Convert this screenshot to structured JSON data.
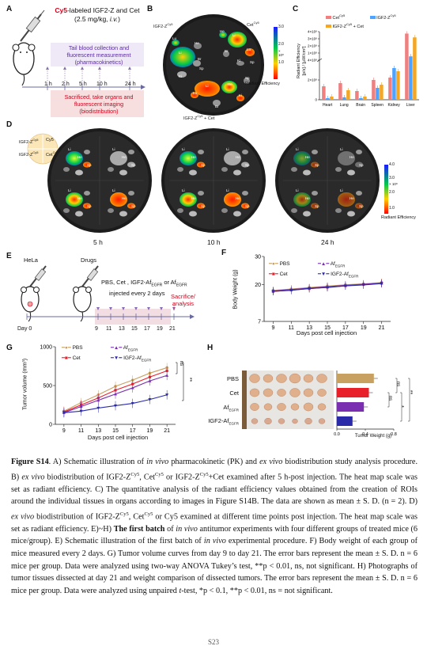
{
  "panelA": {
    "label": "A",
    "title_cy5": "Cy5",
    "title_rest": "-labeled IGF2-Z and Cet",
    "dose": "(2.5 mg/kg, ",
    "dose_route": "i.v.",
    "dose_end": ")",
    "timepoints": [
      "1 h",
      "2 h",
      "5 h",
      "10 h",
      "24 h"
    ],
    "upper_text": [
      "Tail blood collection and",
      "fluorescent measurement",
      "(pharmacokinetics)"
    ],
    "lower_text": [
      "Sacrificed, take organs and",
      "fluorescent imaging",
      "(biodistribution)"
    ]
  },
  "panelB": {
    "label": "B",
    "group_top_left": "IGF2-Z",
    "group_top_left_sup": "Cy5",
    "group_top_right": "Cet",
    "group_top_right_sup": "Cy5",
    "group_bottom": "IGF2-Z",
    "group_bottom_sup": "Cy5",
    "group_bottom_rest": " + Cet",
    "organs": [
      "Li",
      "He",
      "Lu",
      "Br",
      "Ki",
      "Sp"
    ],
    "scale_max": "3.0",
    "scale_mid": "2.0",
    "scale_low": "1.0",
    "scale_unit": "× 10⁸",
    "scale_title": "Radiant Efficiency",
    "colors": {
      "hot": "#ff2a00",
      "warm": "#ffd000",
      "mid": "#00c84a",
      "cool": "#1a3cff"
    }
  },
  "panelC": {
    "label": "C",
    "legend": [
      {
        "name": "Cet",
        "sup": "Cy5",
        "color": "#f08080"
      },
      {
        "name": "IGF2-Z",
        "sup": "Cy5",
        "color": "#4da3ff"
      },
      {
        "name": "IGF2-Z",
        "sup": "Cy5",
        "rest": " + Cet",
        "color": "#f5a623"
      }
    ],
    "ylabel": "Radiant Efficiency",
    "ylabel2": "[p/s] / [µW/cm²]",
    "yticks_lower": [
      "0",
      "2×10⁸",
      "4×10⁸"
    ],
    "yticks_upper": [
      "1×10⁸",
      "2×10⁸",
      "3×10⁸",
      "4×10⁸"
    ]
  },
  "chart_data": [
    {
      "type": "bar",
      "panel": "C",
      "categories": [
        "Heart",
        "Lung",
        "Brain",
        "Spleen",
        "Kidney",
        "Liver"
      ],
      "series": [
        {
          "name": "Cet Cy5",
          "values": [
            8.5,
            10.5,
            5.5,
            12.5,
            14.0,
            95
          ]
        },
        {
          "name": "IGF2-Z Cy5",
          "values": [
            1.0,
            1.5,
            1.0,
            7.5,
            20.0,
            35
          ]
        },
        {
          "name": "IGF2-Z Cy5 + Cet",
          "values": [
            2.0,
            6.0,
            2.0,
            9.5,
            18.0,
            85
          ]
        }
      ]
    },
    {
      "type": "line",
      "panel": "F",
      "x": [
        9,
        11,
        13,
        15,
        17,
        19,
        21
      ],
      "xlabel": "Days post cell injection",
      "ylabel": "Body Weight (g)",
      "ylim": [
        7,
        30
      ],
      "yticks": [
        7,
        20,
        30
      ],
      "series": [
        {
          "name": "PBS",
          "values": [
            18.0,
            18.5,
            19.0,
            19.5,
            20.0,
            20.3,
            20.8
          ]
        },
        {
          "name": "Cet",
          "values": [
            17.6,
            18.1,
            18.6,
            19.1,
            19.6,
            20.1,
            20.6
          ]
        },
        {
          "name": "AfEGFR",
          "values": [
            17.8,
            18.3,
            18.8,
            19.3,
            19.8,
            20.2,
            20.5
          ]
        },
        {
          "name": "IGF2-AfEGFR",
          "values": [
            17.7,
            18.0,
            18.7,
            19.0,
            19.6,
            19.9,
            20.4
          ]
        }
      ]
    },
    {
      "type": "line",
      "panel": "G",
      "x": [
        9,
        11,
        13,
        15,
        17,
        19,
        21
      ],
      "xlabel": "Days post cell injection",
      "ylabel": "Tumor volume (mm³)",
      "ylim": [
        0,
        1000
      ],
      "yticks": [
        0,
        500,
        1000
      ],
      "series": [
        {
          "name": "PBS",
          "values": [
            170,
            280,
            380,
            490,
            570,
            660,
            730
          ]
        },
        {
          "name": "Cet",
          "values": [
            160,
            250,
            340,
            440,
            520,
            610,
            690
          ]
        },
        {
          "name": "AfEGFR",
          "values": [
            150,
            230,
            310,
            390,
            470,
            560,
            630
          ]
        },
        {
          "name": "IGF2-AfEGFR",
          "values": [
            150,
            170,
            210,
            240,
            270,
            320,
            380
          ]
        }
      ]
    },
    {
      "type": "bar",
      "panel": "H",
      "orientation": "horizontal",
      "categories": [
        "PBS",
        "Cet",
        "AfEGFR",
        "IGF2-AfEGFR"
      ],
      "values": [
        0.52,
        0.45,
        0.38,
        0.22
      ],
      "xlabel": "Tumor Weight (g)",
      "xlim": [
        0,
        0.8
      ],
      "xticks": [
        0.0,
        0.4,
        0.8
      ]
    }
  ],
  "panelD": {
    "label": "D",
    "key_tl": "IGF2-Z",
    "key_tl_sup": "Cy5",
    "key_tr": "Cy5",
    "key_bl": "IGF2-Z",
    "key_bl_sup": "Cy5",
    "key_br": "Cet",
    "key_br_sup": "Cy5",
    "times": [
      "5 h",
      "10 h",
      "24 h"
    ],
    "scale_max": "4.0",
    "scale_mid": "3.0",
    "scale_low": "2.0",
    "scale_min": "1.0",
    "scale_unit": "× 10⁸",
    "scale_title": "Radiant Efficiency"
  },
  "panelE": {
    "label": "E",
    "hela": "HeLa",
    "drugs": "Drugs",
    "treat_line1": "PBS, Cet , IGF2-Af",
    "treat_sub1": "EGFR",
    "treat_or": " or Af",
    "treat_sub2": "EGFR",
    "treat_line2": "injected every 2 days",
    "sacrifice": [
      "Sacrifice/",
      "analysis"
    ],
    "day0": "Day 0",
    "days": [
      "9",
      "11",
      "13",
      "15",
      "17",
      "19",
      "21"
    ]
  },
  "panelF": {
    "label": "F",
    "legend": [
      {
        "name": "PBS",
        "color": "#c8a060"
      },
      {
        "name": "Af",
        "sub": "EGFR",
        "color": "#7a2fb0"
      },
      {
        "name": "Cet",
        "color": "#e8202a"
      },
      {
        "name": "IGF2-Af",
        "sub": "EGFR",
        "color": "#2a2aa8"
      }
    ],
    "xticks": [
      "9",
      "11",
      "13",
      "15",
      "17",
      "19",
      "21"
    ],
    "yticks": [
      "7",
      "20",
      "30"
    ],
    "xlabel": "Days post cell injection",
    "ylabel": "Body Weight (g)"
  },
  "panelG": {
    "label": "G",
    "legend": [
      {
        "name": "PBS",
        "color": "#c8a060"
      },
      {
        "name": "Af",
        "sub": "EGFR",
        "color": "#7a2fb0"
      },
      {
        "name": "Cet",
        "color": "#e8202a"
      },
      {
        "name": "IGF2-Af",
        "sub": "EGFR",
        "color": "#2a2aa8"
      }
    ],
    "xticks": [
      "9",
      "11",
      "13",
      "15",
      "17",
      "19",
      "21"
    ],
    "yticks": [
      "0",
      "500",
      "1000"
    ],
    "xlabel": "Days post cell injection",
    "ylabel": "Tumor volume (mm³)",
    "sig1": "ns",
    "sig2": "**"
  },
  "panelH": {
    "label": "H",
    "rows": [
      {
        "name": "PBS",
        "color": "#c8a060"
      },
      {
        "name": "Cet",
        "color": "#e8202a"
      },
      {
        "name": "Af",
        "sub": "EGFR",
        "color": "#7a2fb0"
      },
      {
        "name": "IGF2-Af",
        "sub": "EGFR",
        "color": "#2a2aa8"
      }
    ],
    "xticks": [
      "0.0",
      "0.4",
      "0.8"
    ],
    "xlabel": "Tumor Weight (g)",
    "sig": [
      "ns",
      "ns",
      "**",
      "*"
    ]
  },
  "caption": {
    "fig": "Figure S14",
    "pA": ". A) Schematic illustration of ",
    "pA_it": "in vivo",
    "pA2": " pharmacokinetic (PK) and ",
    "pA_it2": "ex vivo",
    "pA3": " biodistribution study analysis procedure. B) ",
    "pB_it": "ex vivo",
    "pB": " biodistribution of IGF2-Z",
    "pB_sup1": "Cy5",
    "pB2": ", Cet",
    "pB_sup2": "Cy5",
    "pB3": " or IGF2-Z",
    "pB_sup3": "Cy5",
    "pB4": "+Cet examined after 5 h-post injection. The heat map scale was set as radiant efficiency. C) The quantitative analysis of the radiant efficiency values obtained from the creation of ROIs around the individual tissues in organs according to images in Figure S14B. The data are shown as mean ± S. D. (n = 2). D) ",
    "pD_it": "ex vivo",
    "pD": " biodistribution of IGF2-Z",
    "pD_sup1": "Cy5",
    "pD2": ", Cet",
    "pD_sup2": "Cy5",
    "pD3": " or Cy5 examined at different time points post injection. The heat map scale was set as radiant efficiency. E)~H) ",
    "pD_bold": "The first batch",
    "pD4": " of ",
    "pD_it2": "in vivo",
    "pE": " antitumor experiments with four different groups of treated mice (6 mice/group). E) Schematic illustration of the first batch of ",
    "pE_it": "in vivo",
    "pE2": " experimental procedure. F) Body weight of each group of mice measured every 2 days. G) Tumor volume curves from day 9 to day 21. The error bars represent the mean ± S. D. n = 6 mice per group. Data were analyzed using two-way ANOVA Tukey’s test, **p < 0.01, ns, not significant. H) Photographs of tumor tissues dissected at day 21 and weight comparison of dissected tumors. The error bars represent the mean ± S. D. n = 6 mice per group. Data were analyzed using unpaired ",
    "pH_it": "t",
    "pH2": "-test, *p < 0.1, **p < 0.01, ns = not significant."
  },
  "page_number": "S23"
}
